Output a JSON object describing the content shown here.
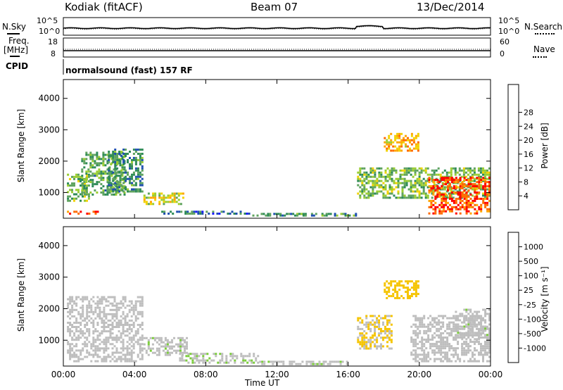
{
  "header": {
    "radar": "Kodiak (fitACF)",
    "beam": "Beam 07",
    "date": "13/Dec/2014"
  },
  "strips": {
    "nsky_label": "N.Sky",
    "nsearch_label": "N.Search",
    "noise_ticks": [
      "10^5",
      "10^0"
    ],
    "freq_label_1": "Freq.",
    "freq_label_2": "[MHz]",
    "freq_ticks": [
      "18",
      "8"
    ],
    "nave_label": "Nave",
    "nave_ticks": [
      "60",
      "0"
    ],
    "cpid_label": "CPID",
    "cpid_text": "normalsound (fast) 157 RF"
  },
  "axes": {
    "xlabel": "Time UT",
    "ylabel": "Slant Range [km]",
    "x_ticks": [
      "00:00",
      "04:00",
      "08:00",
      "12:00",
      "16:00",
      "20:00",
      "00:00"
    ],
    "y_ticks": [
      "1000",
      "2000",
      "3000",
      "4000"
    ]
  },
  "colorbars": {
    "power": {
      "label": "Power [dB]",
      "ticks": [
        "4",
        "8",
        "12",
        "16",
        "20",
        "24",
        "28"
      ],
      "colors": [
        "#1a1aff",
        "#1f4fb0",
        "#2e8b57",
        "#5fa35f",
        "#9acd32",
        "#f2d200",
        "#ffa500",
        "#ff6a00",
        "#ff0000"
      ]
    },
    "velocity": {
      "label": "Velocity [m s⁻¹]",
      "ticks": [
        "1000",
        "500",
        "100",
        "25",
        "-25",
        "-100",
        "-500",
        "-1000"
      ],
      "colors": [
        "#1a1aff",
        "#2a64b8",
        "#3aa16a",
        "#7ccd3c",
        "#bebebe",
        "#f5c400",
        "#ff9a00",
        "#ff5000",
        "#ff0000"
      ]
    }
  },
  "chart_data": [
    {
      "type": "heatmap",
      "panel": "power",
      "x_unit": "hours UT",
      "y_unit": "slant range km",
      "xlim": [
        0,
        24
      ],
      "ylim": [
        180,
        4600
      ],
      "clim_db": [
        0,
        32
      ],
      "ylabel": "Slant Range [km]",
      "zlabel": "Power [dB]",
      "echo_regions": [
        {
          "t": [
            0.2,
            1.5
          ],
          "r": [
            700,
            1600
          ],
          "db": 14
        },
        {
          "t": [
            0.2,
            2.0
          ],
          "r": [
            300,
            420
          ],
          "db": 28
        },
        {
          "t": [
            1.0,
            3.5
          ],
          "r": [
            900,
            2300
          ],
          "db": 12
        },
        {
          "t": [
            2.5,
            4.5
          ],
          "r": [
            1000,
            2400
          ],
          "db": 10
        },
        {
          "t": [
            4.5,
            6.8
          ],
          "r": [
            600,
            1000
          ],
          "db": 18
        },
        {
          "t": [
            5.5,
            10.5
          ],
          "r": [
            300,
            420
          ],
          "db": 8
        },
        {
          "t": [
            10.5,
            16.5
          ],
          "r": [
            250,
            350
          ],
          "db": 10
        },
        {
          "t": [
            16.5,
            24.0
          ],
          "r": [
            800,
            1800
          ],
          "db": 14
        },
        {
          "t": [
            18.0,
            20.0
          ],
          "r": [
            2300,
            2900
          ],
          "db": 22
        },
        {
          "t": [
            20.5,
            24.0
          ],
          "r": [
            300,
            1500
          ],
          "db": 28
        }
      ]
    },
    {
      "type": "heatmap",
      "panel": "velocity",
      "x_unit": "hours UT",
      "y_unit": "slant range km",
      "xlim": [
        0,
        24
      ],
      "ylim": [
        180,
        4600
      ],
      "clim_ms": [
        -1000,
        1000
      ],
      "ylabel": "Slant Range [km]",
      "zlabel": "Velocity [m s⁻¹]",
      "echo_regions": [
        {
          "t": [
            0.2,
            4.5
          ],
          "r": [
            300,
            2400
          ],
          "v": 0
        },
        {
          "t": [
            4.5,
            7.0
          ],
          "r": [
            500,
            1100
          ],
          "v": 60
        },
        {
          "t": [
            6.5,
            11.0
          ],
          "r": [
            250,
            600
          ],
          "v": 80
        },
        {
          "t": [
            11.0,
            16.0
          ],
          "r": [
            200,
            350
          ],
          "v": 70
        },
        {
          "t": [
            16.5,
            18.5
          ],
          "r": [
            700,
            1800
          ],
          "v": -120
        },
        {
          "t": [
            18.0,
            20.0
          ],
          "r": [
            2300,
            2900
          ],
          "v": -200
        },
        {
          "t": [
            19.5,
            24.0
          ],
          "r": [
            300,
            1800
          ],
          "v": 0
        },
        {
          "t": [
            22.0,
            24.0
          ],
          "r": [
            1000,
            2000
          ],
          "v": 60
        }
      ]
    }
  ]
}
